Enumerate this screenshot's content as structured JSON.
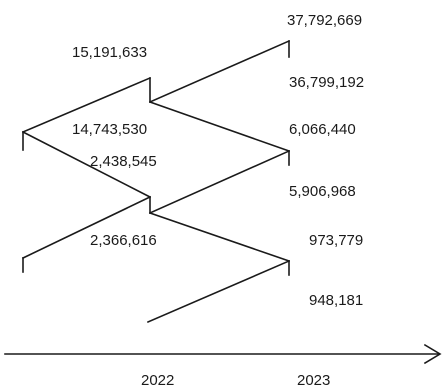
{
  "axis": {
    "ticks": [
      "2022",
      "2023"
    ]
  },
  "labels": {
    "a": "37,792,669",
    "b": "15,191,633",
    "c": "36,799,192",
    "d": "14,743,530",
    "e": "6,066,440",
    "f": "2,438,545",
    "g": "5,906,968",
    "h": "2,366,616",
    "i": "973,779",
    "j": "948,181"
  }
}
